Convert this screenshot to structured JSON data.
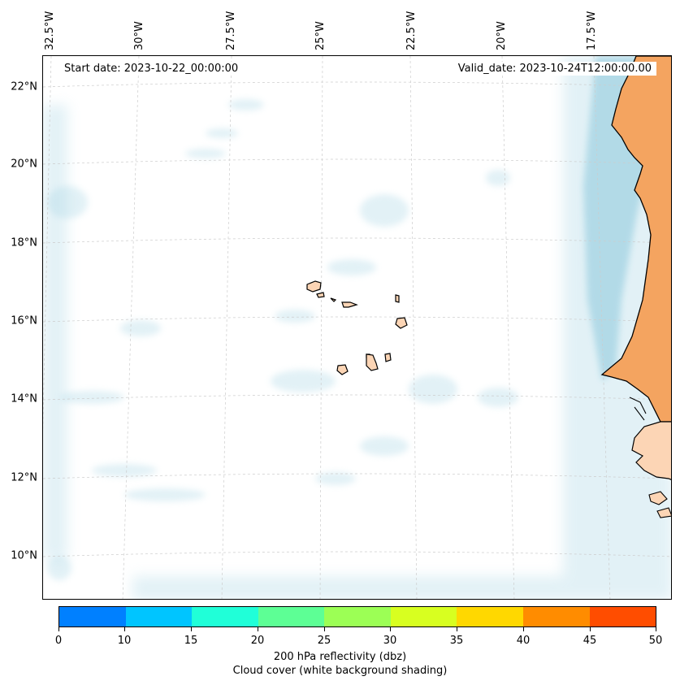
{
  "map": {
    "start_label": "Start date: 2023-10-22_00:00:00",
    "valid_label": "Valid_date: 2023-10-24T12:00:00.00",
    "latitudes": [
      "22°N",
      "20°N",
      "18°N",
      "16°N",
      "14°N",
      "12°N",
      "10°N"
    ],
    "longitudes": [
      "32.5°W",
      "30°W",
      "27.5°W",
      "25°W",
      "22.5°W",
      "20°W",
      "17.5°W"
    ],
    "land_color": "#f4a460",
    "island_color": "#fcd5b5",
    "cloud_color": "#add8e6"
  },
  "colorbar": {
    "ticks": [
      "0",
      "10",
      "15",
      "20",
      "25",
      "30",
      "35",
      "40",
      "45",
      "50"
    ],
    "colors": [
      "#0080ff",
      "#00c5ff",
      "#20ffd8",
      "#5dff95",
      "#9cff55",
      "#d8ff20",
      "#ffd800",
      "#ff8c00",
      "#ff4d00"
    ],
    "label_line1": "200 hPa reflectivity (dbz)",
    "label_line2": "Cloud cover (white background shading)"
  }
}
